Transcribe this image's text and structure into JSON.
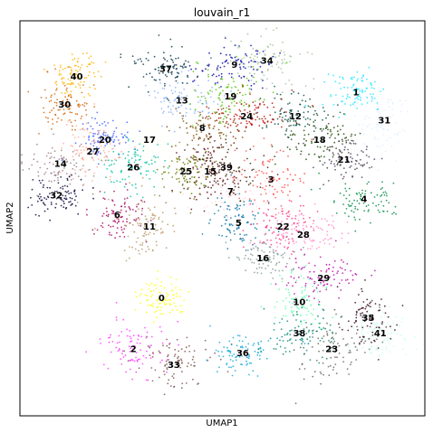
{
  "chart_data": {
    "type": "scatter",
    "title": "louvain_r1",
    "xlabel": "UMAP1",
    "ylabel": "UMAP2",
    "xticks": "none",
    "yticks": "none",
    "grid": false,
    "legend": "on data",
    "x_range": [
      0,
      100
    ],
    "y_range": [
      0,
      100
    ],
    "clusters": [
      {
        "label": "0",
        "x": 35,
        "y": 30,
        "color": "#ffff00"
      },
      {
        "label": "1",
        "x": 83,
        "y": 82,
        "color": "#1ce6ff"
      },
      {
        "label": "2",
        "x": 28,
        "y": 17,
        "color": "#ff34ff"
      },
      {
        "label": "3",
        "x": 62,
        "y": 60,
        "color": "#ff4a46"
      },
      {
        "label": "4",
        "x": 85,
        "y": 55,
        "color": "#008941"
      },
      {
        "label": "5",
        "x": 54,
        "y": 49,
        "color": "#006fa6"
      },
      {
        "label": "6",
        "x": 24,
        "y": 51,
        "color": "#a30059"
      },
      {
        "label": "7",
        "x": 52,
        "y": 57,
        "color": "#ffdbe5"
      },
      {
        "label": "8",
        "x": 45,
        "y": 73,
        "color": "#7a4900"
      },
      {
        "label": "9",
        "x": 53,
        "y": 89,
        "color": "#0000a6"
      },
      {
        "label": "10",
        "x": 69,
        "y": 29,
        "color": "#63ffac"
      },
      {
        "label": "11",
        "x": 32,
        "y": 48,
        "color": "#b79762"
      },
      {
        "label": "12",
        "x": 68,
        "y": 76,
        "color": "#004d43"
      },
      {
        "label": "13",
        "x": 40,
        "y": 80,
        "color": "#8fb0ff"
      },
      {
        "label": "14",
        "x": 10,
        "y": 64,
        "color": "#997d87"
      },
      {
        "label": "15",
        "x": 47,
        "y": 62,
        "color": "#5a0007"
      },
      {
        "label": "16",
        "x": 60,
        "y": 40,
        "color": "#809693"
      },
      {
        "label": "17",
        "x": 32,
        "y": 70,
        "color": "#feffe6"
      },
      {
        "label": "18",
        "x": 74,
        "y": 70,
        "color": "#1b4400"
      },
      {
        "label": "19",
        "x": 52,
        "y": 81,
        "color": "#4fc601"
      },
      {
        "label": "20",
        "x": 21,
        "y": 70,
        "color": "#3b5dff"
      },
      {
        "label": "21",
        "x": 80,
        "y": 65,
        "color": "#4a3b53"
      },
      {
        "label": "22",
        "x": 65,
        "y": 48,
        "color": "#ff2f80"
      },
      {
        "label": "23",
        "x": 77,
        "y": 17,
        "color": "#61615a"
      },
      {
        "label": "24",
        "x": 56,
        "y": 76,
        "color": "#ba0900"
      },
      {
        "label": "25",
        "x": 41,
        "y": 62,
        "color": "#6b7900"
      },
      {
        "label": "26",
        "x": 28,
        "y": 63,
        "color": "#00c2a0"
      },
      {
        "label": "27",
        "x": 18,
        "y": 67,
        "color": "#ffaa92"
      },
      {
        "label": "28",
        "x": 70,
        "y": 46,
        "color": "#ff90c9"
      },
      {
        "label": "29",
        "x": 75,
        "y": 35,
        "color": "#b903aa"
      },
      {
        "label": "30",
        "x": 11,
        "y": 79,
        "color": "#d16100"
      },
      {
        "label": "31",
        "x": 90,
        "y": 75,
        "color": "#ddefff"
      },
      {
        "label": "32",
        "x": 9,
        "y": 56,
        "color": "#000035"
      },
      {
        "label": "33",
        "x": 38,
        "y": 13,
        "color": "#7b4f4b"
      },
      {
        "label": "34",
        "x": 61,
        "y": 90,
        "color": "#a1c299"
      },
      {
        "label": "35",
        "x": 86,
        "y": 25,
        "color": "#300018"
      },
      {
        "label": "36",
        "x": 55,
        "y": 16,
        "color": "#0aa6d8"
      },
      {
        "label": "37",
        "x": 36,
        "y": 88,
        "color": "#013349"
      },
      {
        "label": "38",
        "x": 69,
        "y": 21,
        "color": "#00846f"
      },
      {
        "label": "39",
        "x": 51,
        "y": 63,
        "color": "#372101"
      },
      {
        "label": "40",
        "x": 14,
        "y": 86,
        "color": "#ffb500"
      },
      {
        "label": "41",
        "x": 89,
        "y": 21,
        "color": "#c2ffed"
      }
    ]
  }
}
